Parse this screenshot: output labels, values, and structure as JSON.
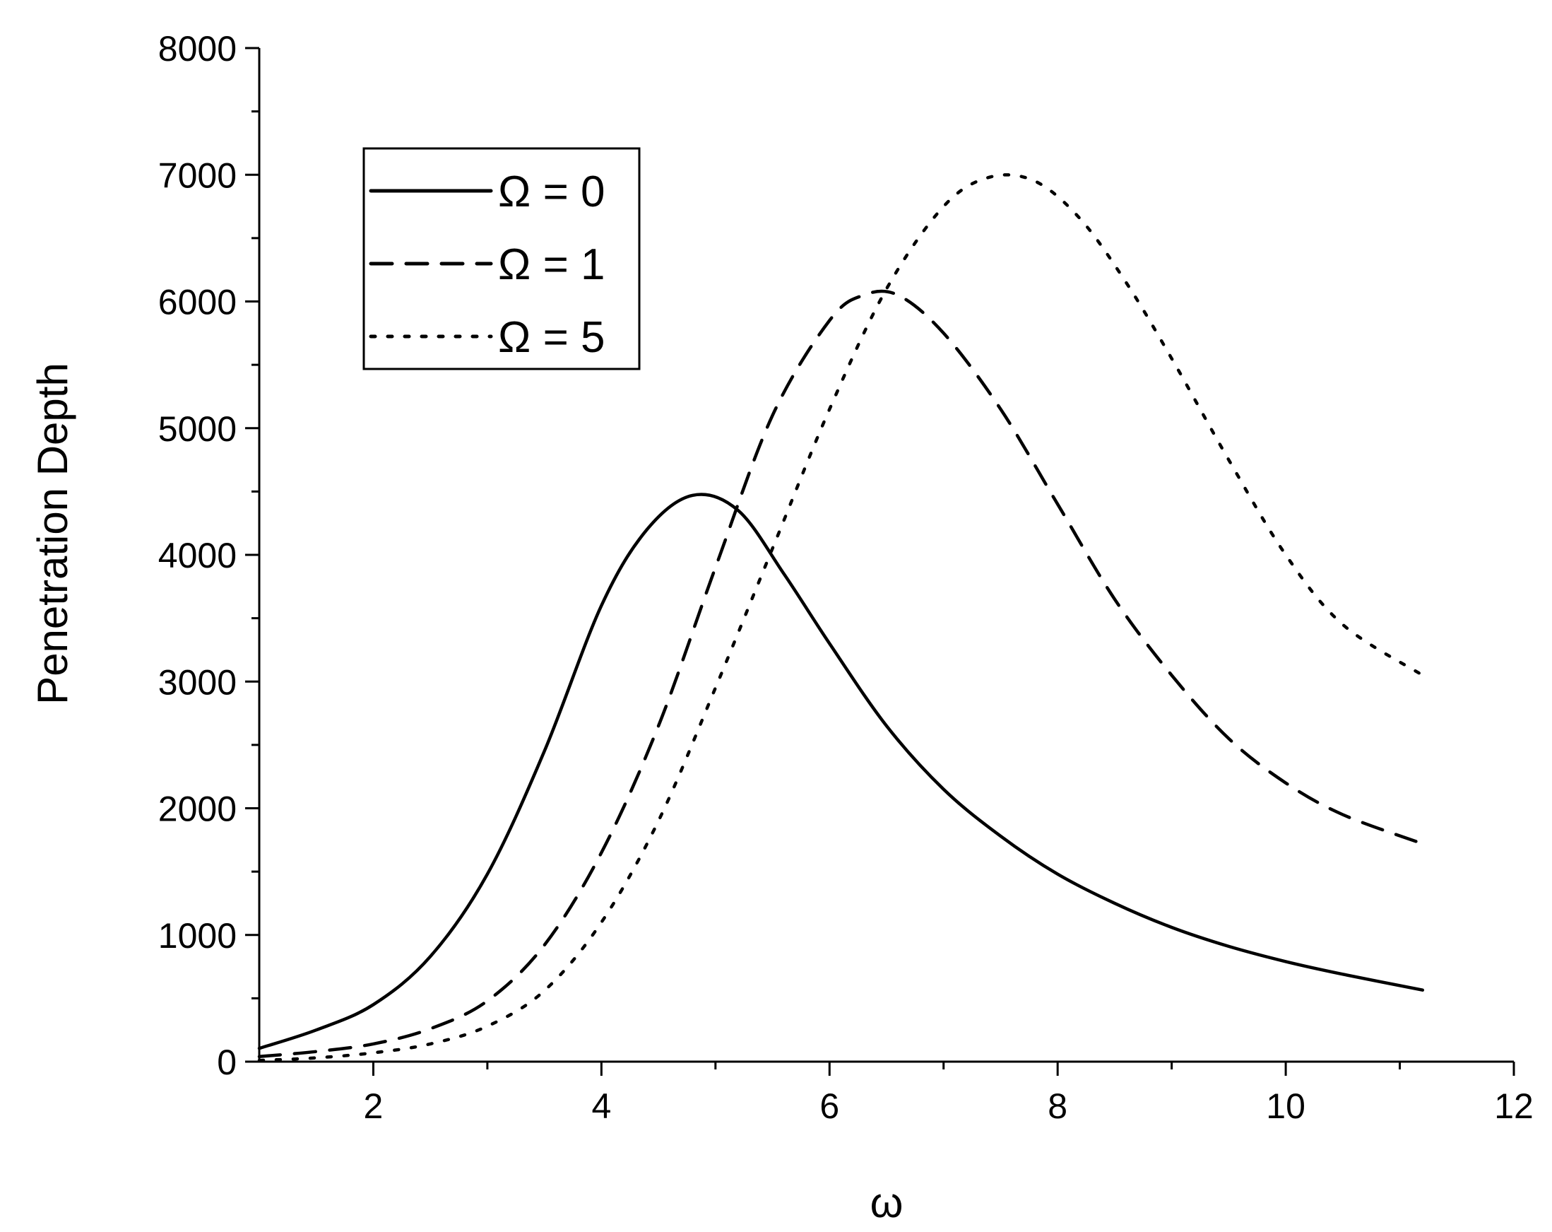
{
  "chart_data": {
    "type": "line",
    "title": "",
    "xlabel": "ω",
    "ylabel": "Penetration Depth",
    "xlim": [
      1,
      12
    ],
    "ylim": [
      0,
      8000
    ],
    "x_ticks": [
      2,
      4,
      6,
      8,
      10,
      12
    ],
    "x_tick_labels": [
      "2",
      "4",
      "6",
      "8",
      "10",
      "12"
    ],
    "y_ticks": [
      0,
      1000,
      2000,
      3000,
      4000,
      5000,
      6000,
      7000,
      8000
    ],
    "y_tick_labels": [
      "0",
      "1000",
      "2000",
      "3000",
      "4000",
      "5000",
      "6000",
      "7000",
      "8000"
    ],
    "grid": false,
    "legend_position": "top-left",
    "colors": {
      "line": "#000000",
      "background": "#ffffff"
    },
    "series": [
      {
        "name": "Ω = 0",
        "style": "solid",
        "x": [
          1.0,
          1.5,
          2.0,
          2.5,
          3.0,
          3.5,
          4.0,
          4.4,
          4.8,
          5.2,
          5.6,
          6.0,
          6.5,
          7.0,
          7.5,
          8.0,
          8.5,
          9.0,
          9.5,
          10.0,
          10.5,
          11.2
        ],
        "y": [
          105,
          250,
          450,
          830,
          1480,
          2450,
          3600,
          4200,
          4470,
          4350,
          3850,
          3300,
          2650,
          2150,
          1780,
          1480,
          1250,
          1060,
          910,
          790,
          690,
          565
        ]
      },
      {
        "name": "Ω = 1",
        "style": "dashed",
        "x": [
          1.0,
          1.5,
          2.0,
          2.5,
          3.0,
          3.5,
          4.0,
          4.5,
          5.0,
          5.5,
          6.0,
          6.3,
          6.6,
          7.0,
          7.5,
          8.0,
          8.5,
          9.0,
          9.5,
          10.0,
          10.5,
          11.2
        ],
        "y": [
          40,
          80,
          140,
          260,
          480,
          920,
          1650,
          2650,
          3900,
          5100,
          5850,
          6050,
          6050,
          5750,
          5150,
          4400,
          3650,
          3050,
          2550,
          2200,
          1950,
          1720
        ]
      },
      {
        "name": "Ω = 5",
        "style": "dotted",
        "x": [
          1.0,
          1.5,
          2.0,
          2.5,
          3.0,
          3.5,
          4.0,
          4.5,
          5.0,
          5.5,
          6.0,
          6.5,
          7.0,
          7.4,
          7.8,
          8.2,
          8.6,
          9.0,
          9.5,
          10.0,
          10.5,
          11.2
        ],
        "y": [
          10,
          30,
          70,
          140,
          280,
          560,
          1100,
          1900,
          2950,
          4050,
          5150,
          6100,
          6750,
          6980,
          6950,
          6650,
          6150,
          5550,
          4750,
          4000,
          3450,
          3050
        ]
      }
    ]
  }
}
